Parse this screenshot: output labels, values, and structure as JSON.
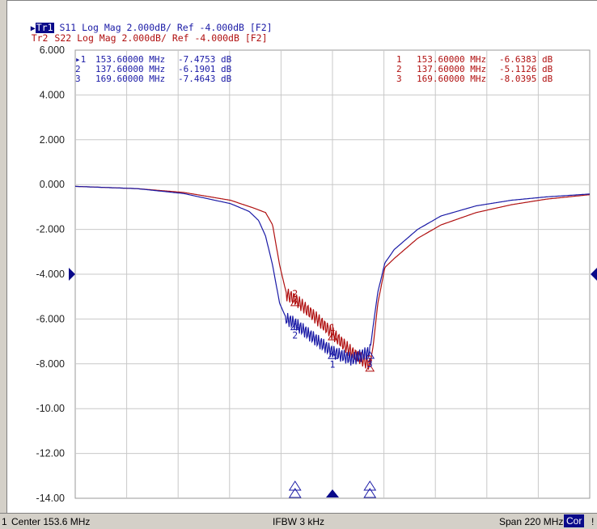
{
  "traces": [
    {
      "tag": "Tr1",
      "rest": "S11 Log Mag 2.000dB/ Ref -4.000dB [F2]",
      "color": "#1a1aa6"
    },
    {
      "tag": "Tr2",
      "rest": "S22 Log Mag 2.000dB/ Ref -4.000dB [F2]",
      "color": "#b01010"
    }
  ],
  "status": {
    "channel": "1",
    "center": "Center 153.6 MHz",
    "ifbw": "IFBW 3 kHz",
    "span": "Span 220 MHz",
    "cor": "Cor",
    "flag": "!"
  },
  "chart_data": {
    "type": "line",
    "xlabel": "",
    "ylabel": "",
    "xlim_mhz": [
      43.6,
      263.6
    ],
    "ylim": [
      -14,
      6
    ],
    "y_ticks": [
      "6.000",
      "4.000",
      "2.000",
      "0.000",
      "-2.000",
      "-4.000",
      "-6.000",
      "-8.000",
      "-10.00",
      "-12.00",
      "-14.00"
    ],
    "reference_level": -4.0,
    "grid": true,
    "series": [
      {
        "name": "S11",
        "color": "#1a1aa6",
        "points": [
          [
            43.6,
            -0.08
          ],
          [
            70,
            -0.18
          ],
          [
            90,
            -0.4
          ],
          [
            110,
            -0.85
          ],
          [
            118,
            -1.2
          ],
          [
            122,
            -1.6
          ],
          [
            125,
            -2.3
          ],
          [
            128,
            -3.6
          ],
          [
            131,
            -5.3
          ],
          [
            134,
            -6.0
          ],
          [
            137.6,
            -6.2
          ],
          [
            145,
            -6.8
          ],
          [
            153.6,
            -7.47
          ],
          [
            162,
            -7.8
          ],
          [
            169.6,
            -7.46
          ],
          [
            171,
            -6.3
          ],
          [
            173,
            -4.8
          ],
          [
            176,
            -3.5
          ],
          [
            180,
            -2.9
          ],
          [
            190,
            -2.0
          ],
          [
            200,
            -1.4
          ],
          [
            215,
            -0.95
          ],
          [
            230,
            -0.7
          ],
          [
            245,
            -0.55
          ],
          [
            263.6,
            -0.42
          ]
        ]
      },
      {
        "name": "S22",
        "color": "#b01010",
        "points": [
          [
            43.6,
            -0.08
          ],
          [
            70,
            -0.18
          ],
          [
            90,
            -0.35
          ],
          [
            110,
            -0.7
          ],
          [
            120,
            -1.05
          ],
          [
            125,
            -1.25
          ],
          [
            128,
            -1.8
          ],
          [
            131,
            -3.6
          ],
          [
            134,
            -4.9
          ],
          [
            137.6,
            -5.11
          ],
          [
            145,
            -5.8
          ],
          [
            153.6,
            -6.64
          ],
          [
            162,
            -7.5
          ],
          [
            169.6,
            -8.04
          ],
          [
            171,
            -7.2
          ],
          [
            173,
            -5.3
          ],
          [
            176,
            -3.7
          ],
          [
            180,
            -3.3
          ],
          [
            190,
            -2.4
          ],
          [
            200,
            -1.8
          ],
          [
            215,
            -1.25
          ],
          [
            230,
            -0.9
          ],
          [
            245,
            -0.65
          ],
          [
            263.6,
            -0.45
          ]
        ]
      }
    ],
    "markers": {
      "S11": [
        {
          "n": "1",
          "freq": "153.60000 MHz",
          "value": "-7.4753 dB",
          "active": true
        },
        {
          "n": "2",
          "freq": "137.60000 MHz",
          "value": "-6.1901 dB"
        },
        {
          "n": "3",
          "freq": "169.60000 MHz",
          "value": "-7.4643 dB"
        }
      ],
      "S22": [
        {
          "n": "1",
          "freq": "153.60000 MHz",
          "value": "-6.6383 dB"
        },
        {
          "n": "2",
          "freq": "137.60000 MHz",
          "value": "-5.1126 dB"
        },
        {
          "n": "3",
          "freq": "169.60000 MHz",
          "value": "-8.0395 dB"
        }
      ]
    },
    "marker_points": {
      "S11": [
        [
          153.6,
          -7.4753
        ],
        [
          137.6,
          -6.1901
        ],
        [
          169.6,
          -7.4643
        ]
      ],
      "S22": [
        [
          153.6,
          -6.6383
        ],
        [
          137.6,
          -5.1126
        ],
        [
          169.6,
          -8.0395
        ]
      ]
    }
  }
}
